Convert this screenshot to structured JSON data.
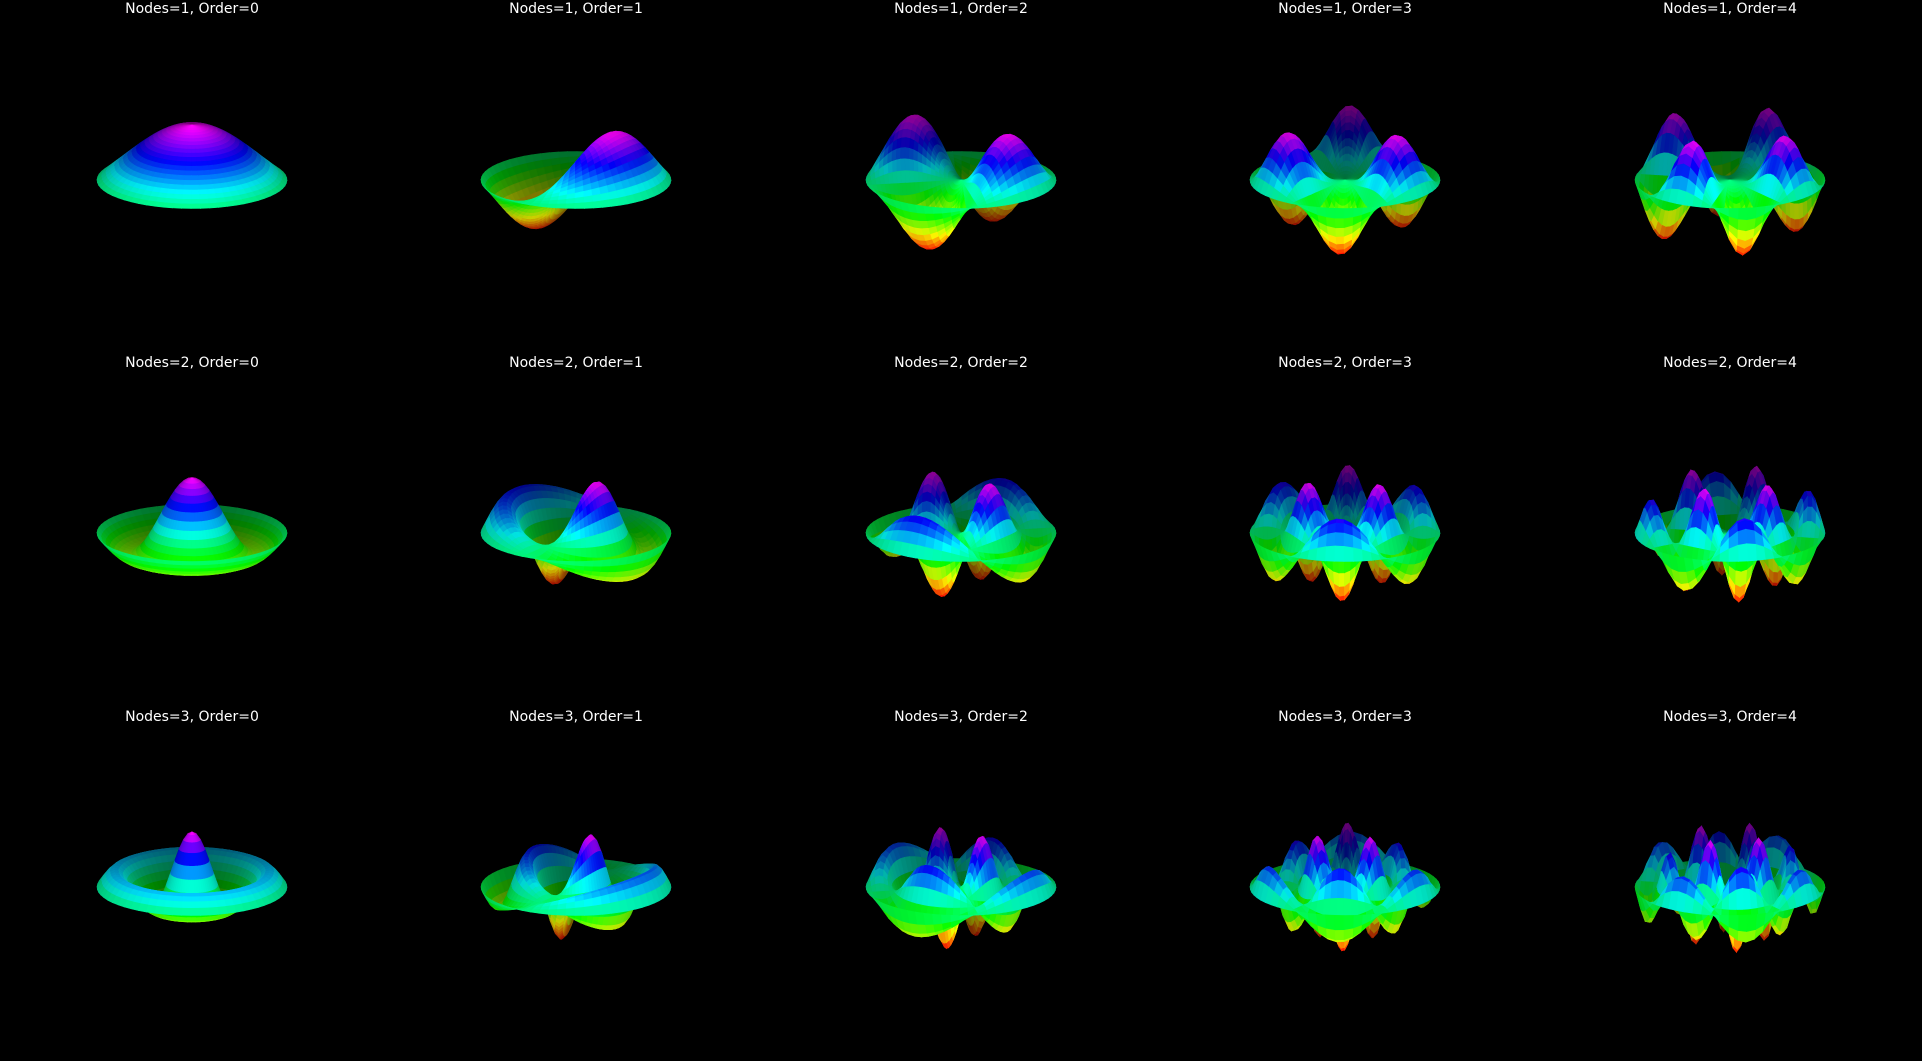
{
  "figure": {
    "background": "#000000",
    "colormap": "gist_rainbow",
    "title_color": "#ffffff",
    "panels": [
      {
        "title": "Nodes=1, Order=0",
        "nodes": 1,
        "order": 0
      },
      {
        "title": "Nodes=1, Order=1",
        "nodes": 1,
        "order": 1
      },
      {
        "title": "Nodes=1, Order=2",
        "nodes": 1,
        "order": 2
      },
      {
        "title": "Nodes=1, Order=3",
        "nodes": 1,
        "order": 3
      },
      {
        "title": "Nodes=1, Order=4",
        "nodes": 1,
        "order": 4
      },
      {
        "title": "Nodes=2, Order=0",
        "nodes": 2,
        "order": 0
      },
      {
        "title": "Nodes=2, Order=1",
        "nodes": 2,
        "order": 1
      },
      {
        "title": "Nodes=2, Order=2",
        "nodes": 2,
        "order": 2
      },
      {
        "title": "Nodes=2, Order=3",
        "nodes": 2,
        "order": 3
      },
      {
        "title": "Nodes=2, Order=4",
        "nodes": 2,
        "order": 4
      },
      {
        "title": "Nodes=3, Order=0",
        "nodes": 3,
        "order": 0
      },
      {
        "title": "Nodes=3, Order=1",
        "nodes": 3,
        "order": 1
      },
      {
        "title": "Nodes=3, Order=2",
        "nodes": 3,
        "order": 2
      },
      {
        "title": "Nodes=3, Order=3",
        "nodes": 3,
        "order": 3
      },
      {
        "title": "Nodes=3, Order=4",
        "nodes": 3,
        "order": 4
      }
    ]
  }
}
